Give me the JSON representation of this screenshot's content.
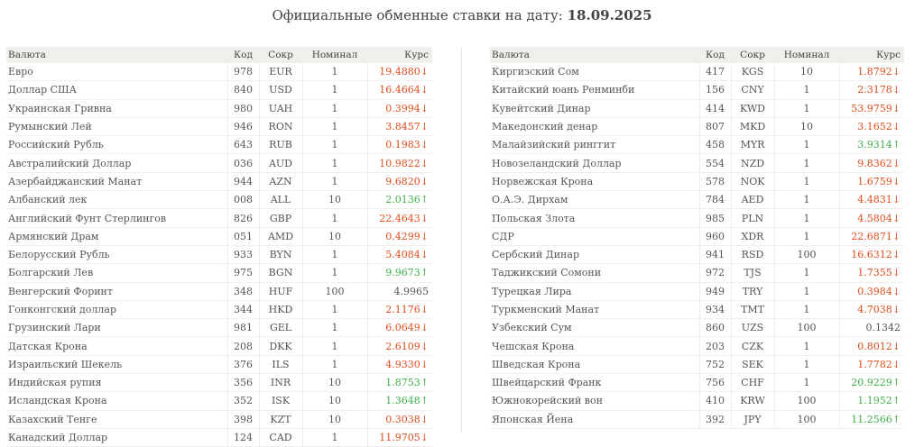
{
  "title": {
    "text": "Официальные обменные ставки на дату:",
    "date": "18.09.2025"
  },
  "headers": {
    "name": "Валюта",
    "code": "Код",
    "abbr": "Сокр",
    "nominal": "Номинал",
    "rate": "Курс"
  },
  "colors": {
    "down": "#e04d1c",
    "up": "#3fae49",
    "header_bg": "#f0efeb"
  },
  "left_rows": [
    {
      "name": "Евро",
      "code": "978",
      "abbr": "EUR",
      "nominal": "1",
      "rate": "19.4880",
      "trend": "down"
    },
    {
      "name": "Доллар США",
      "code": "840",
      "abbr": "USD",
      "nominal": "1",
      "rate": "16.4664",
      "trend": "down"
    },
    {
      "name": "Украинская Гривна",
      "code": "980",
      "abbr": "UAH",
      "nominal": "1",
      "rate": "0.3994",
      "trend": "down"
    },
    {
      "name": "Румынский Лей",
      "code": "946",
      "abbr": "RON",
      "nominal": "1",
      "rate": "3.8457",
      "trend": "down"
    },
    {
      "name": "Российский Рубль",
      "code": "643",
      "abbr": "RUB",
      "nominal": "1",
      "rate": "0.1983",
      "trend": "down"
    },
    {
      "name": "Австралийский Доллар",
      "code": "036",
      "abbr": "AUD",
      "nominal": "1",
      "rate": "10.9822",
      "trend": "down"
    },
    {
      "name": "Азербайджанский Манат",
      "code": "944",
      "abbr": "AZN",
      "nominal": "1",
      "rate": "9.6820",
      "trend": "down"
    },
    {
      "name": "Албанский лек",
      "code": "008",
      "abbr": "ALL",
      "nominal": "10",
      "rate": "2.0136",
      "trend": "up"
    },
    {
      "name": "Английский Фунт Стерлингов",
      "code": "826",
      "abbr": "GBP",
      "nominal": "1",
      "rate": "22.4643",
      "trend": "down"
    },
    {
      "name": "Армянский Драм",
      "code": "051",
      "abbr": "AMD",
      "nominal": "10",
      "rate": "0.4299",
      "trend": "down"
    },
    {
      "name": "Белорусский Рубль",
      "code": "933",
      "abbr": "BYN",
      "nominal": "1",
      "rate": "5.4084",
      "trend": "down"
    },
    {
      "name": "Болгарский Лев",
      "code": "975",
      "abbr": "BGN",
      "nominal": "1",
      "rate": "9.9673",
      "trend": "up"
    },
    {
      "name": "Венгерский Форинт",
      "code": "348",
      "abbr": "HUF",
      "nominal": "100",
      "rate": "4.9965",
      "trend": "same"
    },
    {
      "name": "Гонконгский доллар",
      "code": "344",
      "abbr": "HKD",
      "nominal": "1",
      "rate": "2.1176",
      "trend": "down"
    },
    {
      "name": "Грузинский Лари",
      "code": "981",
      "abbr": "GEL",
      "nominal": "1",
      "rate": "6.0649",
      "trend": "down"
    },
    {
      "name": "Датская Крона",
      "code": "208",
      "abbr": "DKK",
      "nominal": "1",
      "rate": "2.6109",
      "trend": "down"
    },
    {
      "name": "Израильский Шекель",
      "code": "376",
      "abbr": "ILS",
      "nominal": "1",
      "rate": "4.9330",
      "trend": "down"
    },
    {
      "name": "Индийская рупия",
      "code": "356",
      "abbr": "INR",
      "nominal": "10",
      "rate": "1.8753",
      "trend": "up"
    },
    {
      "name": "Исландская Крона",
      "code": "352",
      "abbr": "ISK",
      "nominal": "10",
      "rate": "1.3648",
      "trend": "up"
    },
    {
      "name": "Казахский Тенге",
      "code": "398",
      "abbr": "KZT",
      "nominal": "10",
      "rate": "0.3038",
      "trend": "down"
    },
    {
      "name": "Канадский Доллар",
      "code": "124",
      "abbr": "CAD",
      "nominal": "1",
      "rate": "11.9705",
      "trend": "down"
    }
  ],
  "right_rows": [
    {
      "name": "Киргизский Сом",
      "code": "417",
      "abbr": "KGS",
      "nominal": "10",
      "rate": "1.8792",
      "trend": "down"
    },
    {
      "name": "Китайский юань Ренминби",
      "code": "156",
      "abbr": "CNY",
      "nominal": "1",
      "rate": "2.3178",
      "trend": "down"
    },
    {
      "name": "Кувейтский Динар",
      "code": "414",
      "abbr": "KWD",
      "nominal": "1",
      "rate": "53.9759",
      "trend": "down"
    },
    {
      "name": "Македонский денар",
      "code": "807",
      "abbr": "MKD",
      "nominal": "10",
      "rate": "3.1652",
      "trend": "down"
    },
    {
      "name": "Малайзийский ринггит",
      "code": "458",
      "abbr": "MYR",
      "nominal": "1",
      "rate": "3.9314",
      "trend": "up"
    },
    {
      "name": "Новозеландский Доллар",
      "code": "554",
      "abbr": "NZD",
      "nominal": "1",
      "rate": "9.8362",
      "trend": "down"
    },
    {
      "name": "Норвежская Крона",
      "code": "578",
      "abbr": "NOK",
      "nominal": "1",
      "rate": "1.6759",
      "trend": "down"
    },
    {
      "name": "О.А.Э. Дирхам",
      "code": "784",
      "abbr": "AED",
      "nominal": "1",
      "rate": "4.4831",
      "trend": "down"
    },
    {
      "name": "Польская Злота",
      "code": "985",
      "abbr": "PLN",
      "nominal": "1",
      "rate": "4.5804",
      "trend": "down"
    },
    {
      "name": "СДР",
      "code": "960",
      "abbr": "XDR",
      "nominal": "1",
      "rate": "22.6871",
      "trend": "down"
    },
    {
      "name": "Сербский Динар",
      "code": "941",
      "abbr": "RSD",
      "nominal": "100",
      "rate": "16.6312",
      "trend": "down"
    },
    {
      "name": "Таджикский Сомони",
      "code": "972",
      "abbr": "TJS",
      "nominal": "1",
      "rate": "1.7355",
      "trend": "down"
    },
    {
      "name": "Турецкая Лира",
      "code": "949",
      "abbr": "TRY",
      "nominal": "1",
      "rate": "0.3984",
      "trend": "down"
    },
    {
      "name": "Туркменский Манат",
      "code": "934",
      "abbr": "TMT",
      "nominal": "1",
      "rate": "4.7038",
      "trend": "down"
    },
    {
      "name": "Узбекский Сум",
      "code": "860",
      "abbr": "UZS",
      "nominal": "100",
      "rate": "0.1342",
      "trend": "same"
    },
    {
      "name": "Чешская Крона",
      "code": "203",
      "abbr": "CZK",
      "nominal": "1",
      "rate": "0.8012",
      "trend": "down"
    },
    {
      "name": "Шведская Крона",
      "code": "752",
      "abbr": "SEK",
      "nominal": "1",
      "rate": "1.7782",
      "trend": "down"
    },
    {
      "name": "Швейцарский Франк",
      "code": "756",
      "abbr": "CHF",
      "nominal": "1",
      "rate": "20.9229",
      "trend": "up"
    },
    {
      "name": "Южнокорейский вон",
      "code": "410",
      "abbr": "KRW",
      "nominal": "100",
      "rate": "1.1952",
      "trend": "up"
    },
    {
      "name": "Японская Йена",
      "code": "392",
      "abbr": "JPY",
      "nominal": "100",
      "rate": "11.2566",
      "trend": "up"
    }
  ]
}
